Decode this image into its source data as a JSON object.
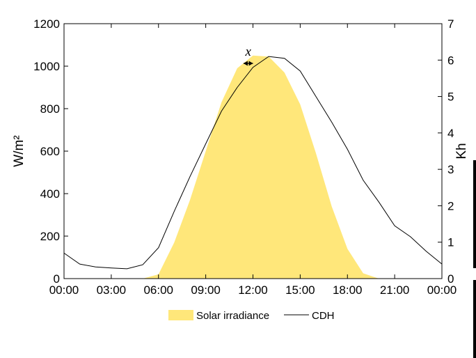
{
  "chart_data": {
    "type": "area",
    "xlabel": "",
    "ylabel": "W/m²",
    "y2label": "Kh",
    "x_tick_labels": [
      "00:00",
      "03:00",
      "06:00",
      "09:00",
      "12:00",
      "15:00",
      "18:00",
      "21:00",
      "00:00"
    ],
    "x_tick_hours": [
      0,
      3,
      6,
      9,
      12,
      15,
      18,
      21,
      24
    ],
    "xlim": [
      0,
      24
    ],
    "ylim": [
      0,
      1200
    ],
    "y_ticks": [
      0,
      200,
      400,
      600,
      800,
      1000,
      1200
    ],
    "y2lim": [
      0,
      7
    ],
    "y2_ticks": [
      0,
      1,
      2,
      3,
      4,
      5,
      6,
      7
    ],
    "grid": false,
    "legend_position": "bottom-center",
    "series": [
      {
        "name": "Solar irradiance",
        "type": "area",
        "axis": "left",
        "color": "#FFE77A",
        "x": [
          0,
          5,
          6,
          7,
          8,
          9,
          10,
          11,
          12,
          13,
          14,
          15,
          16,
          17,
          18,
          19,
          20,
          24
        ],
        "y": [
          0,
          0,
          20,
          170,
          370,
          600,
          830,
          990,
          1050,
          1045,
          970,
          820,
          590,
          340,
          140,
          25,
          0,
          0
        ]
      },
      {
        "name": "CDH",
        "type": "line",
        "axis": "right",
        "color": "#000000",
        "x": [
          0,
          1,
          2,
          3,
          4,
          5,
          6,
          7,
          8,
          9,
          10,
          11,
          12,
          13,
          14,
          15,
          16,
          17,
          18,
          19,
          20,
          21,
          22,
          23,
          24
        ],
        "y": [
          0.7,
          0.4,
          0.32,
          0.29,
          0.27,
          0.38,
          0.85,
          1.85,
          2.8,
          3.7,
          4.6,
          5.25,
          5.8,
          6.1,
          6.05,
          5.7,
          5.0,
          4.3,
          3.55,
          2.7,
          2.1,
          1.45,
          1.15,
          0.75,
          0.4
        ]
      }
    ],
    "annotations": [
      {
        "text": "x",
        "from_hour": 11.4,
        "to_hour": 12.0,
        "value": 1013
      }
    ]
  }
}
